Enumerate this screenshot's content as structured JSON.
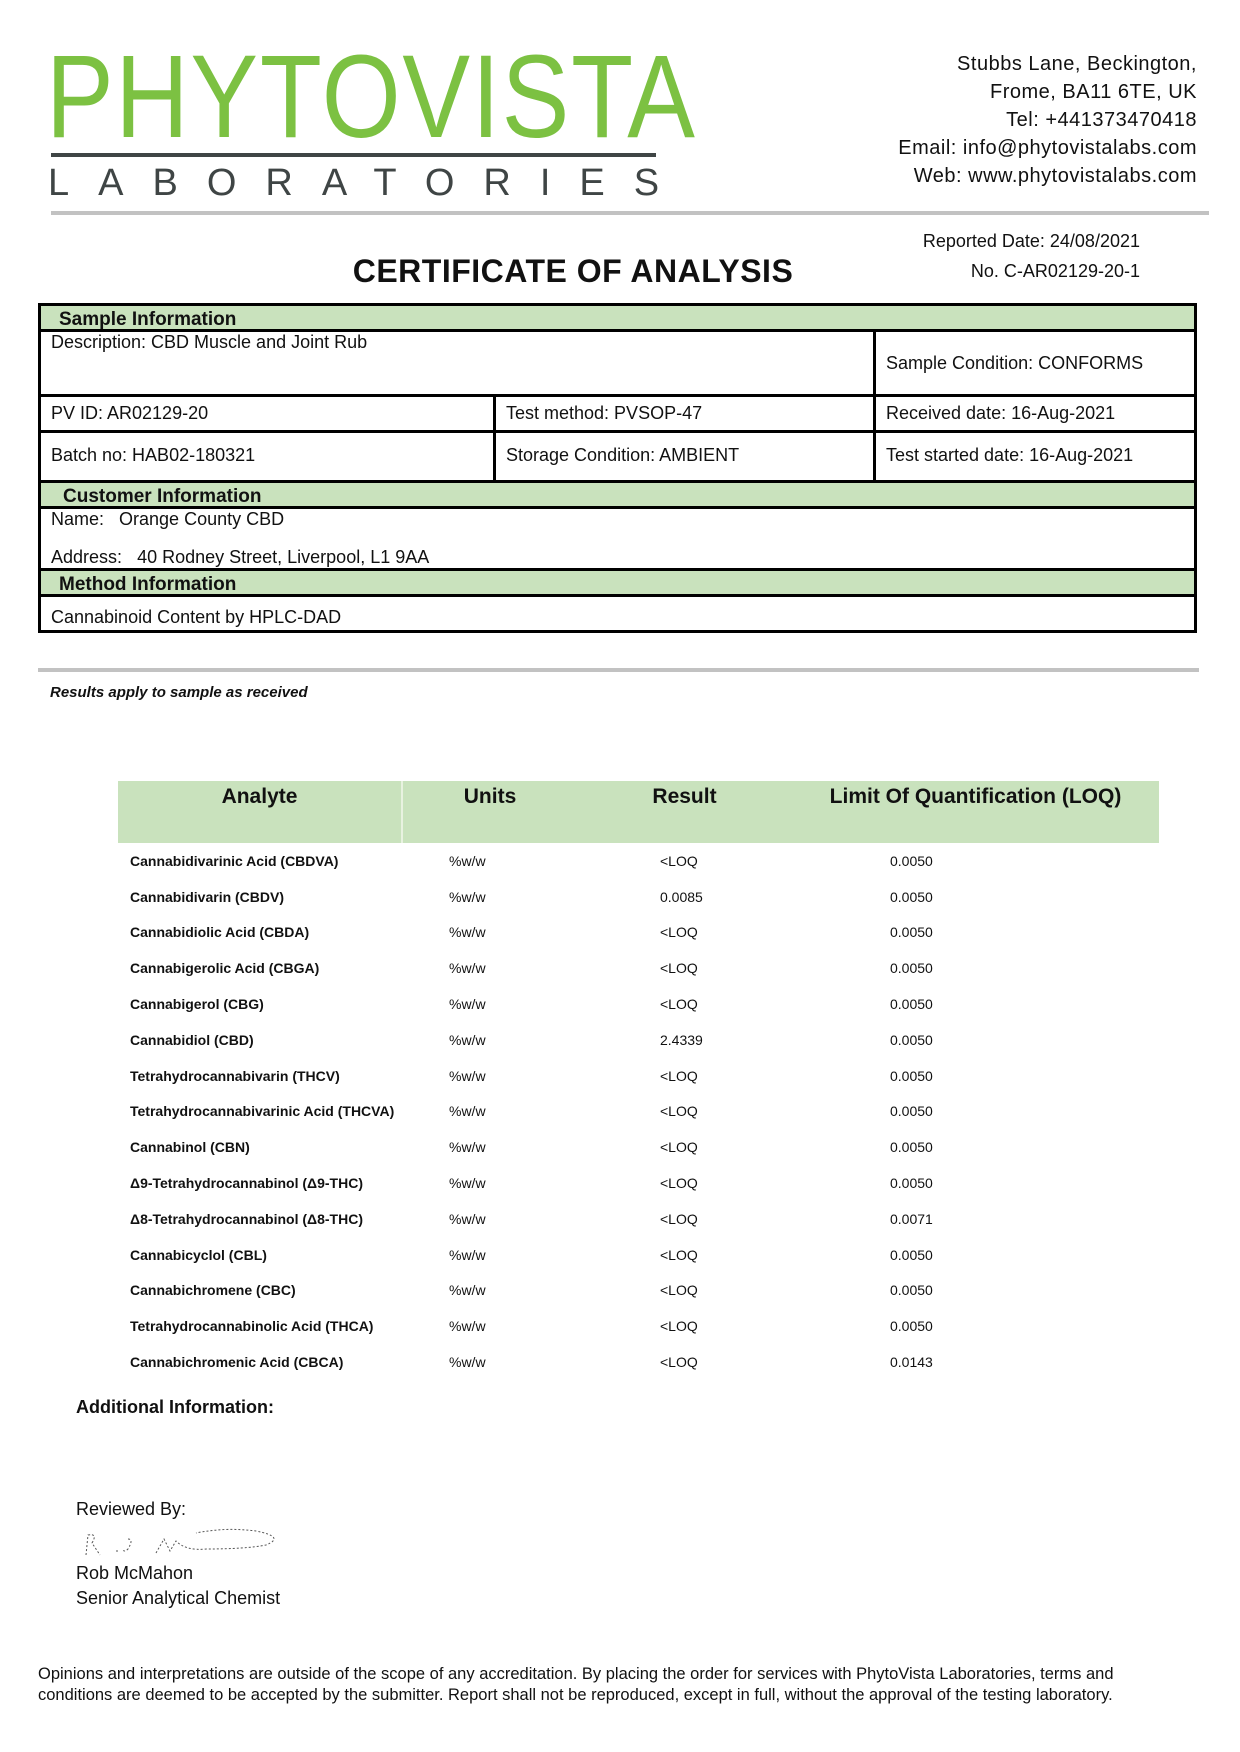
{
  "logo": {
    "name": "PHYTOVISTA",
    "sub": "LABORATORIES",
    "color": "#7cc142"
  },
  "address": [
    "Stubbs Lane, Beckington,",
    "Frome, BA11 6TE, UK",
    "Tel: +441373470418",
    "Email: info@phytovistalabs.com",
    "Web: www.phytovistalabs.com"
  ],
  "reported_date": "Reported Date: 24/08/2021",
  "certificate_no": "No. C-AR02129-20-1",
  "title": "CERTIFICATE OF ANALYSIS",
  "sample": {
    "header": "Sample Information",
    "description": "Description: CBD Muscle and Joint Rub",
    "condition": "Sample Condition: CONFORMS",
    "pv_id": "PV ID: AR02129-20",
    "test_method": "Test method: PVSOP-47",
    "received": "Received date: 16-Aug-2021",
    "batch": "Batch no: HAB02-180321",
    "storage": "Storage Condition: AMBIENT",
    "started": "Test started date: 16-Aug-2021"
  },
  "customer": {
    "header": "Customer Information",
    "name_label": "Name:",
    "name": "Orange County CBD",
    "address_label": "Address:",
    "address": "40 Rodney Street, Liverpool, L1 9AA"
  },
  "method": {
    "header": "Method Information",
    "content": "Cannabinoid Content by HPLC-DAD"
  },
  "results_note": "Results apply to sample as received",
  "results": {
    "columns": [
      "Analyte",
      "Units",
      "Result",
      "Limit Of Quantification (LOQ)"
    ],
    "rows": [
      [
        "Cannabidivarinic Acid (CBDVA)",
        "%w/w",
        "<LOQ",
        "0.0050"
      ],
      [
        "Cannabidivarin (CBDV)",
        "%w/w",
        "0.0085",
        "0.0050"
      ],
      [
        "Cannabidiolic Acid (CBDA)",
        "%w/w",
        "<LOQ",
        "0.0050"
      ],
      [
        "Cannabigerolic Acid (CBGA)",
        "%w/w",
        "<LOQ",
        "0.0050"
      ],
      [
        "Cannabigerol (CBG)",
        "%w/w",
        "<LOQ",
        "0.0050"
      ],
      [
        "Cannabidiol (CBD)",
        "%w/w",
        "2.4339",
        "0.0050"
      ],
      [
        "Tetrahydrocannabivarin (THCV)",
        "%w/w",
        "<LOQ",
        "0.0050"
      ],
      [
        "Tetrahydrocannabivarinic Acid (THCVA)",
        "%w/w",
        "<LOQ",
        "0.0050"
      ],
      [
        "Cannabinol (CBN)",
        "%w/w",
        "<LOQ",
        "0.0050"
      ],
      [
        "Δ9-Tetrahydrocannabinol (Δ9-THC)",
        "%w/w",
        "<LOQ",
        "0.0050"
      ],
      [
        "Δ8-Tetrahydrocannabinol (Δ8-THC)",
        "%w/w",
        "<LOQ",
        "0.0071"
      ],
      [
        "Cannabicyclol (CBL)",
        "%w/w",
        "<LOQ",
        "0.0050"
      ],
      [
        "Cannabichromene (CBC)",
        "%w/w",
        "<LOQ",
        "0.0050"
      ],
      [
        "Tetrahydrocannabinolic Acid (THCA)",
        "%w/w",
        "<LOQ",
        "0.0050"
      ],
      [
        "Cannabichromenic Acid (CBCA)",
        "%w/w",
        "<LOQ",
        "0.0143"
      ]
    ]
  },
  "additional_label": "Additional Information:",
  "reviewed_label": "Reviewed By:",
  "reviewer": {
    "signature": "R. J. McMahon",
    "name": "Rob McMahon",
    "title": "Senior Analytical Chemist"
  },
  "footer": "Opinions and interpretations are outside of the scope of any accreditation. By placing the order for services with PhytoVista Laboratories, terms and conditions are deemed to be accepted by the submitter. Report shall not be reproduced, except in full, without the approval of the testing laboratory."
}
